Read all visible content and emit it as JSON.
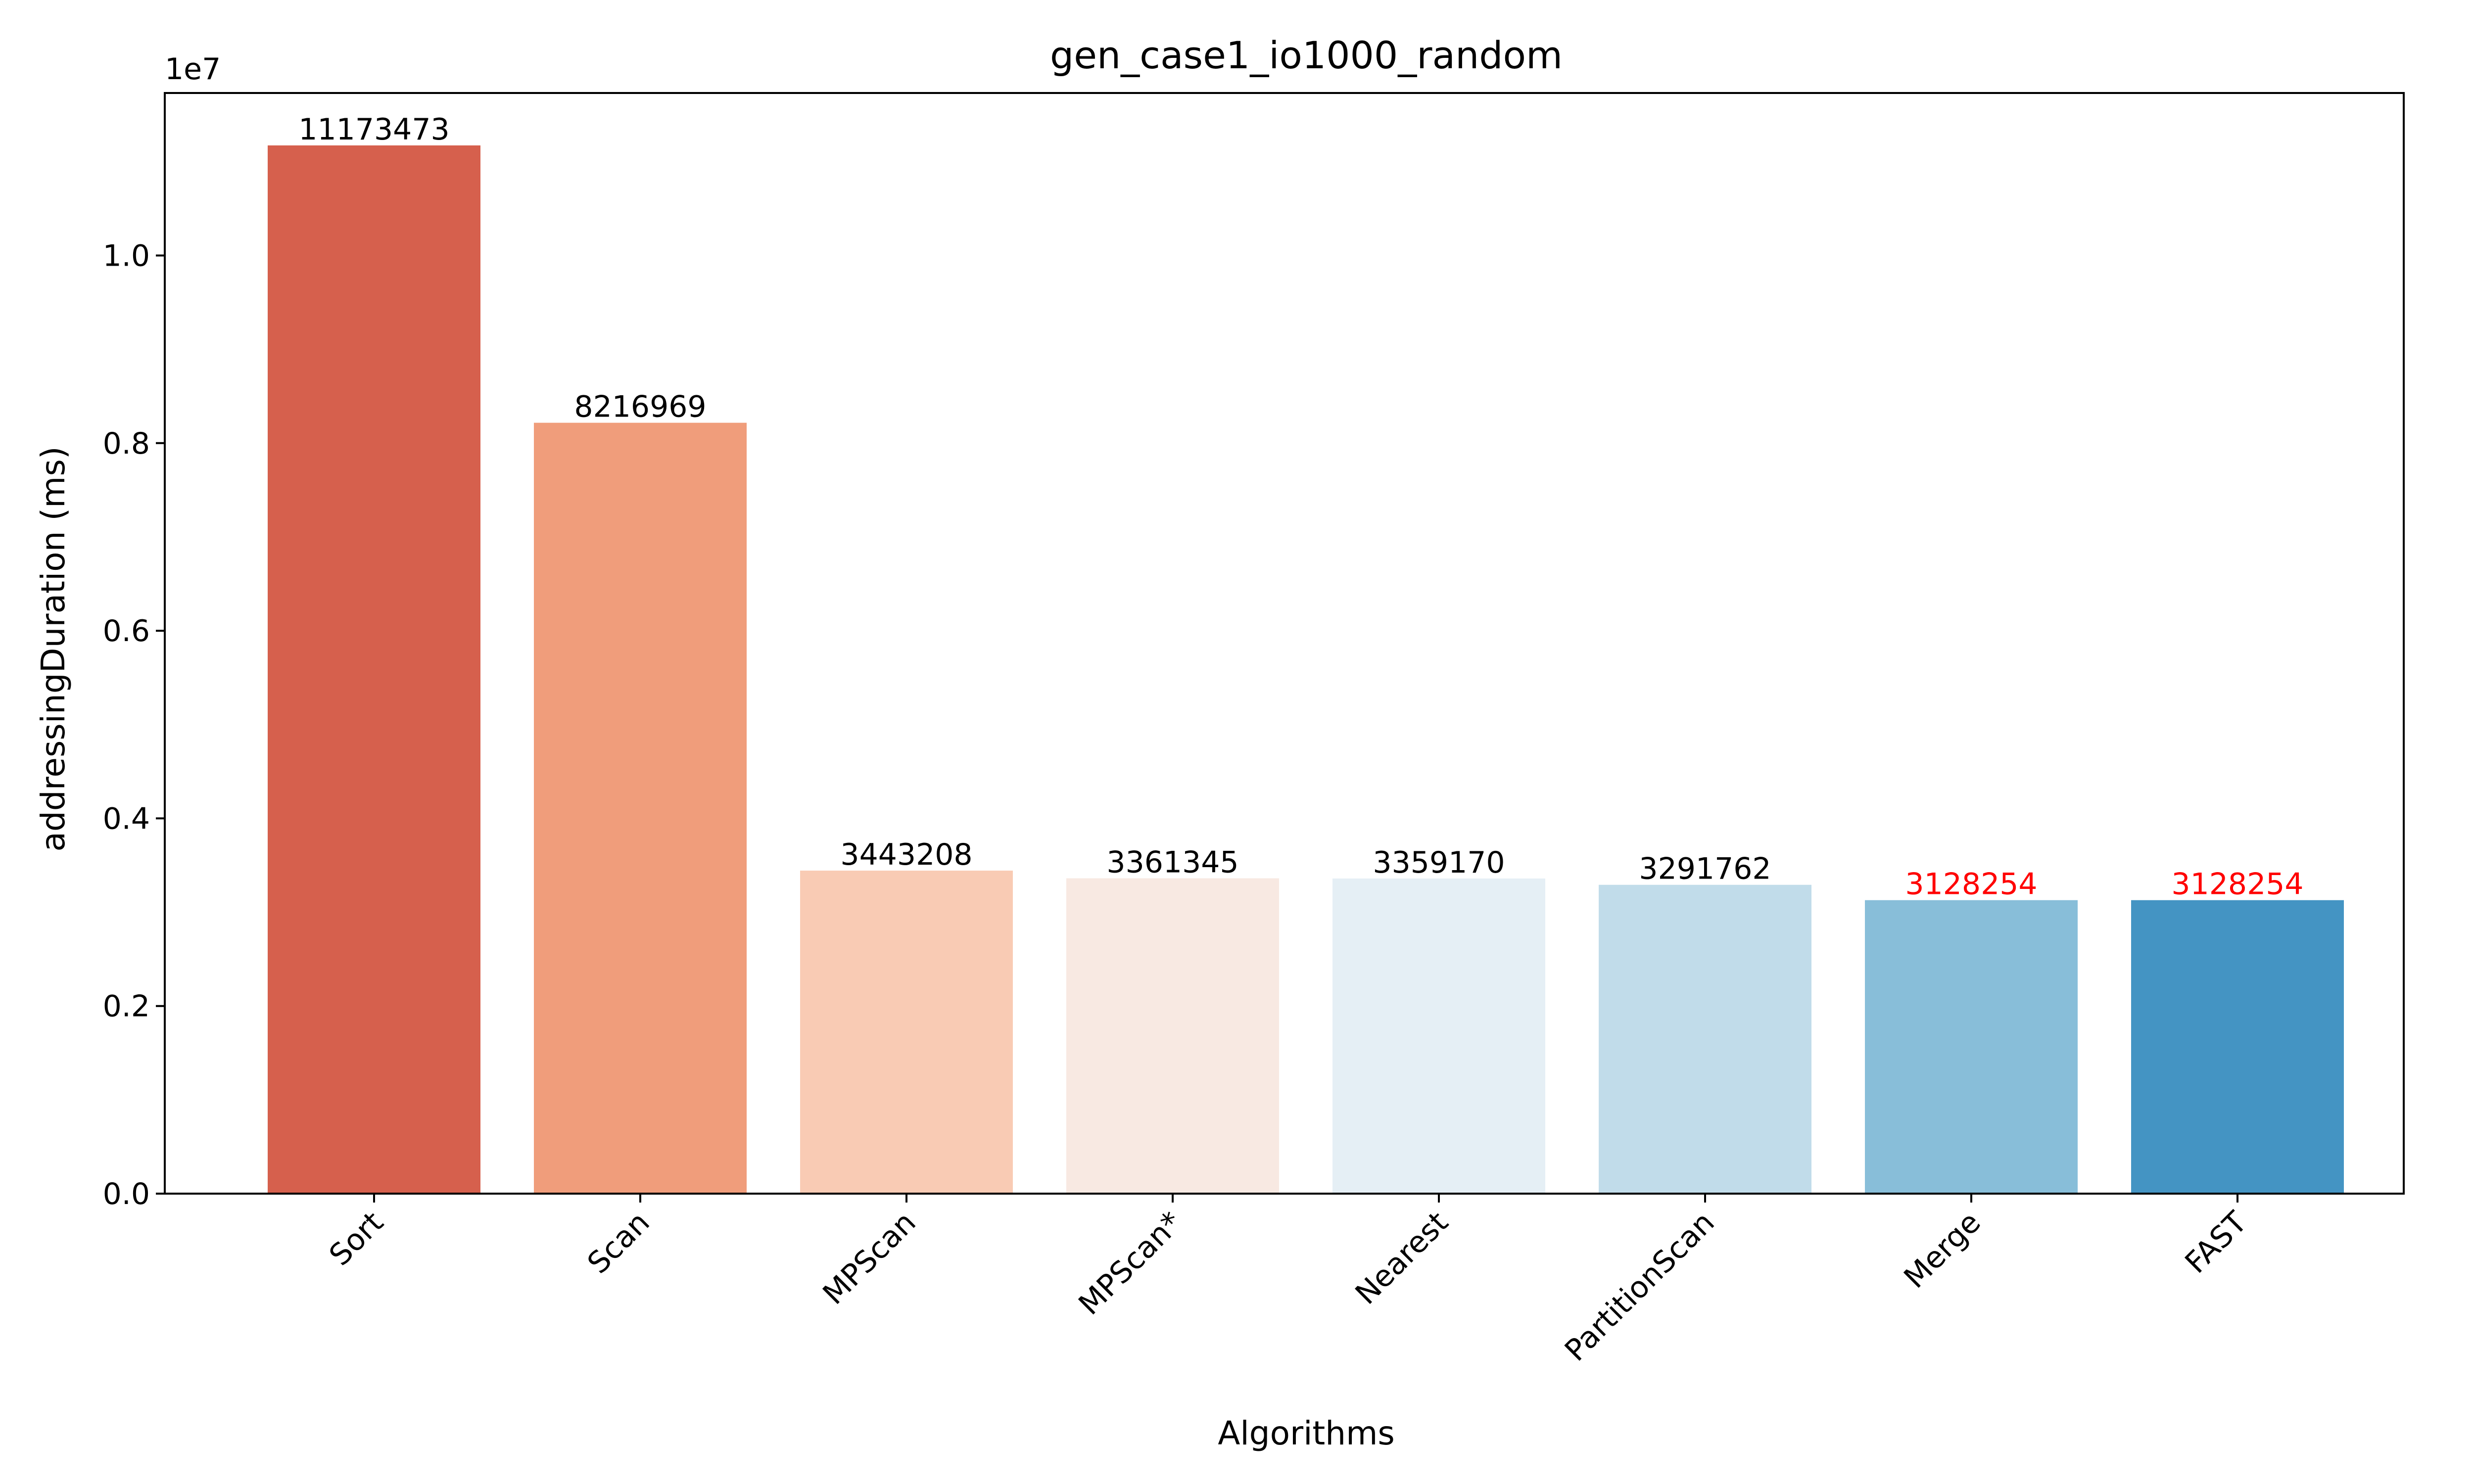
{
  "chart_data": {
    "type": "bar",
    "title": "gen_case1_io1000_random",
    "xlabel": "Algorithms",
    "ylabel": "addressingDuration (ms)",
    "y_offset_text": "1e7",
    "y_scale": 10000000,
    "ylim": [
      0,
      11732147
    ],
    "y_ticks": [
      0,
      2000000,
      4000000,
      6000000,
      8000000,
      10000000
    ],
    "y_tick_labels": [
      "0.0",
      "0.2",
      "0.4",
      "0.6",
      "0.8",
      "1.0"
    ],
    "grid": false,
    "categories": [
      "Sort",
      "Scan",
      "MPScan",
      "MPScan*",
      "Nearest",
      "PartitionScan",
      "Merge",
      "FAST"
    ],
    "values": [
      11173473,
      8216969,
      3443208,
      3361345,
      3359170,
      3291762,
      3128254,
      3128254
    ],
    "value_labels": [
      "11173473",
      "8216969",
      "3443208",
      "3361345",
      "3359170",
      "3291762",
      "3128254",
      "3128254"
    ],
    "bar_colors": [
      "#d6604d",
      "#f09d7b",
      "#f9cbb4",
      "#f8e9e2",
      "#e5eff5",
      "#c1dcea",
      "#88bed9",
      "#4494c3"
    ],
    "label_colors": [
      "#000000",
      "#000000",
      "#000000",
      "#000000",
      "#000000",
      "#000000",
      "#ff0000",
      "#ff0000"
    ]
  }
}
